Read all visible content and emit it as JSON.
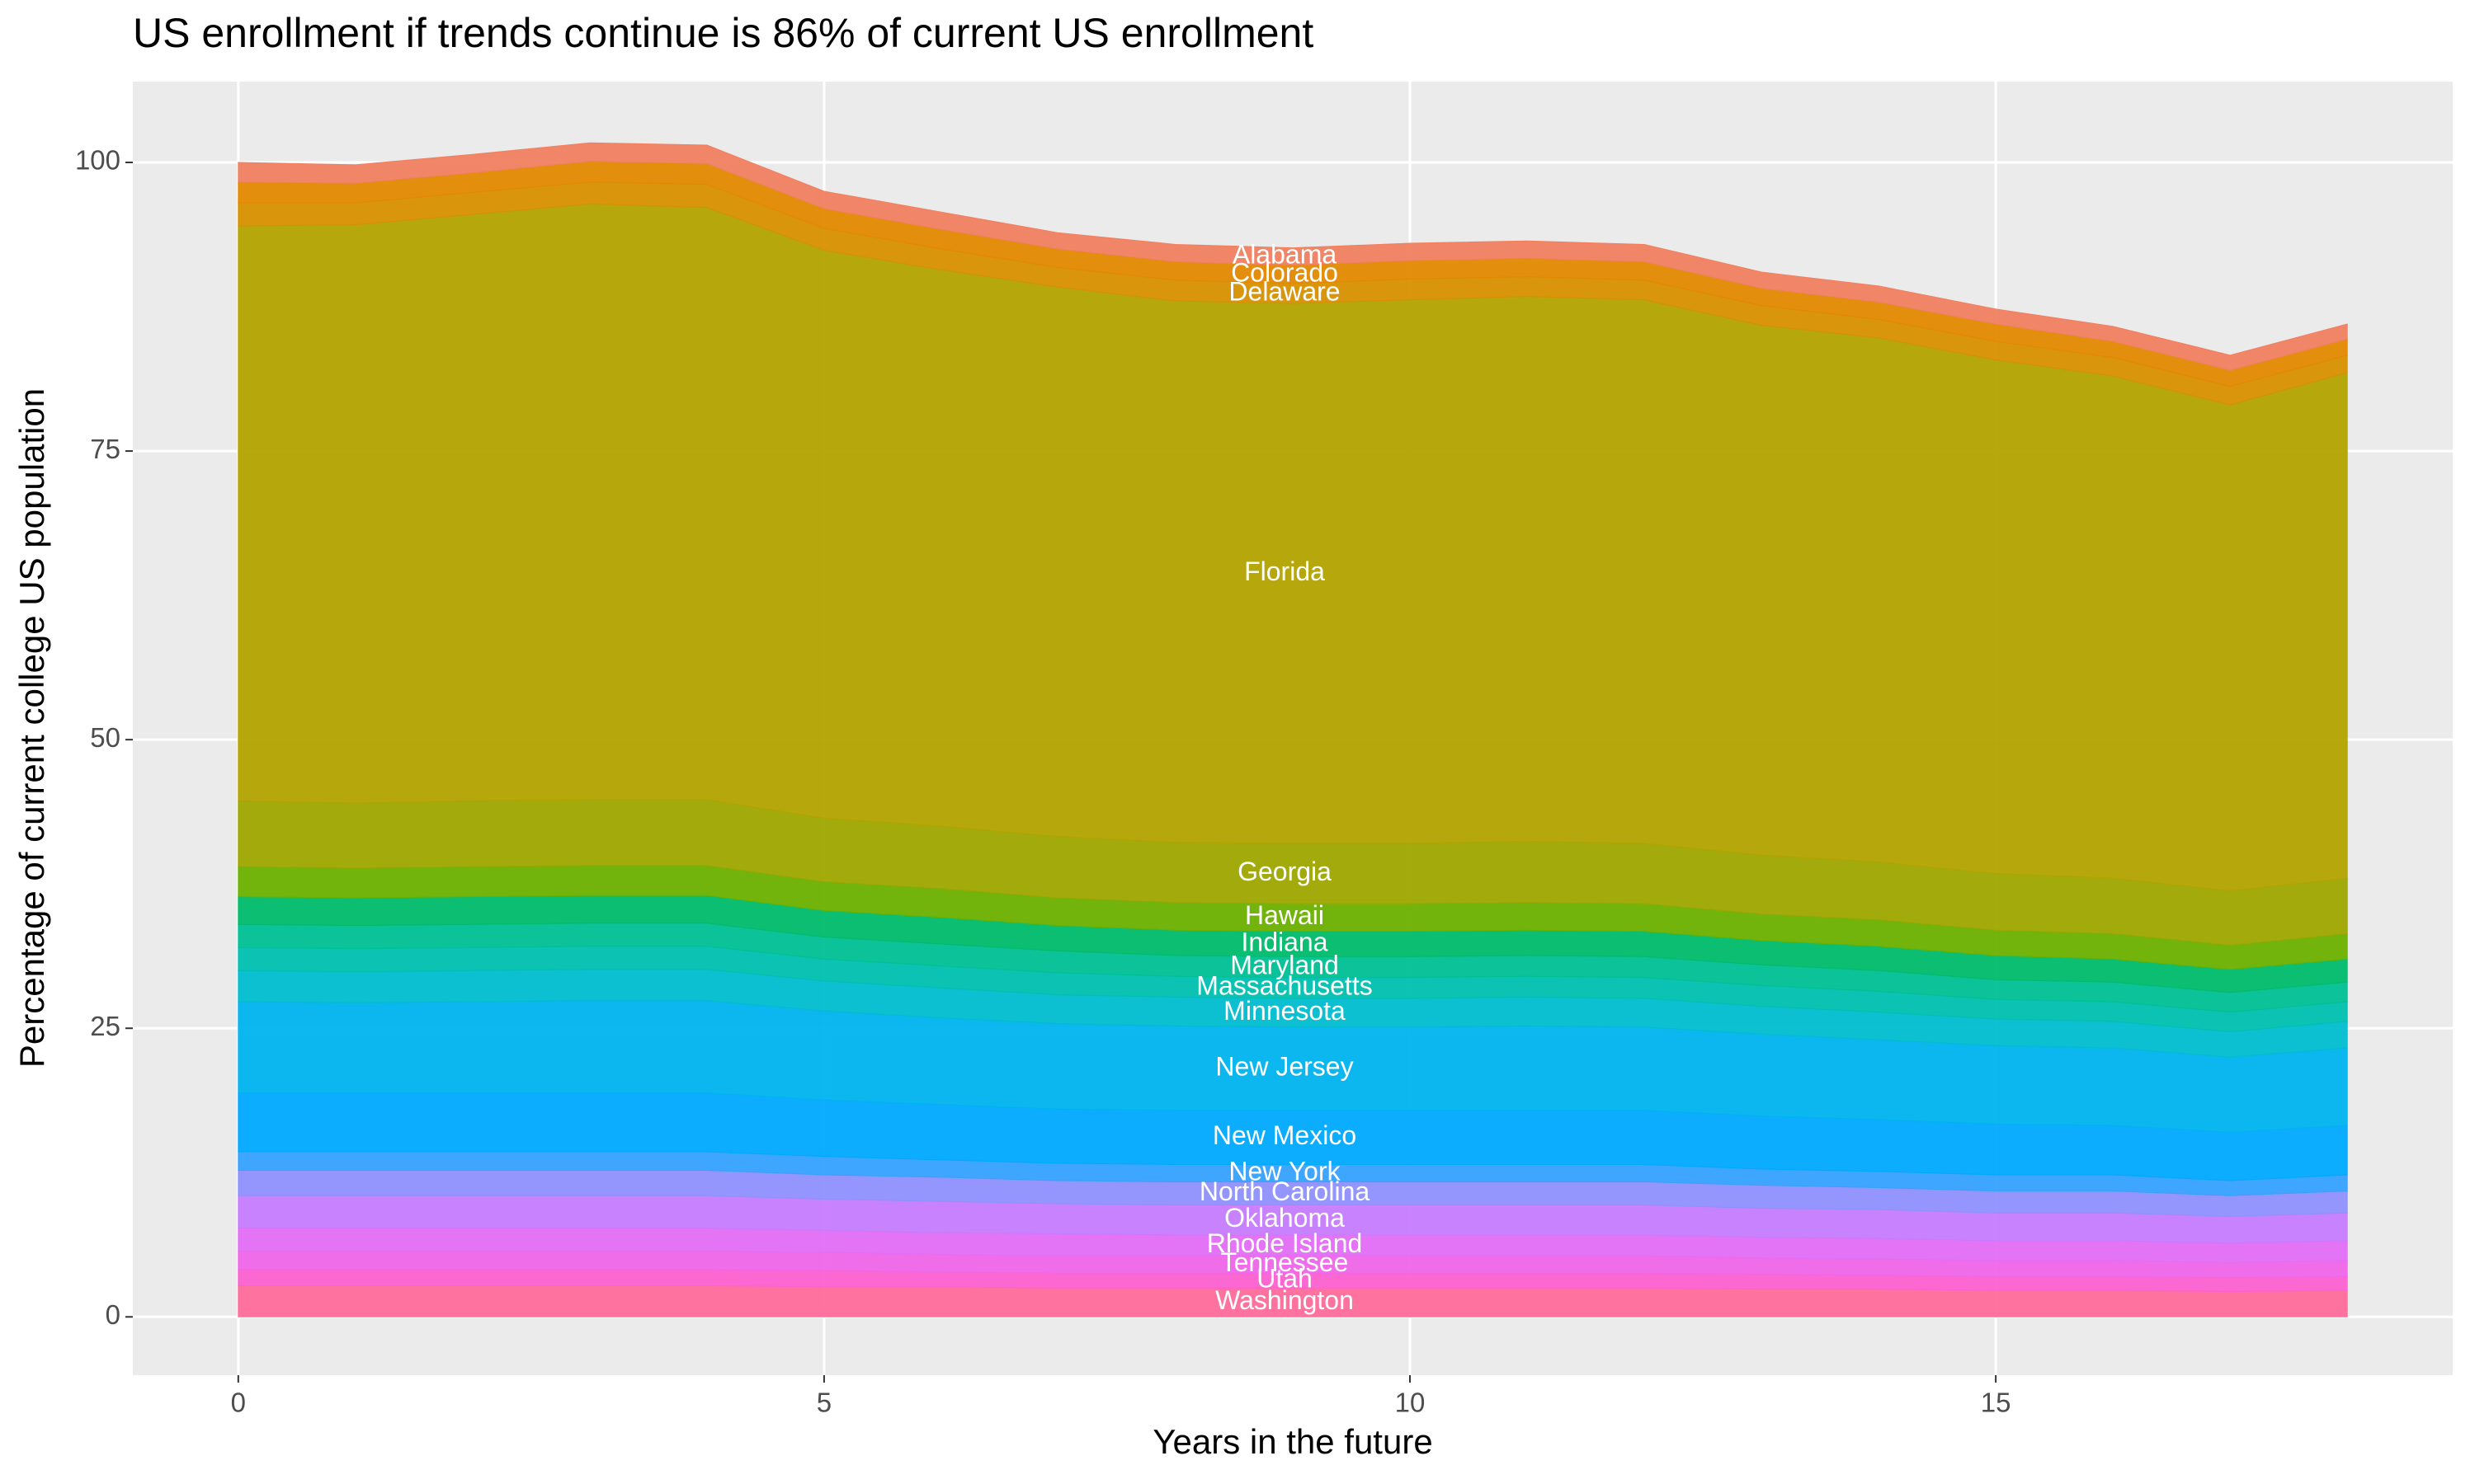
{
  "chart_data": {
    "type": "stacked_area",
    "title": "US enrollment if trends continue is 86% of current US enrollment",
    "x_label": "Years in the future",
    "y_label": "Percentage of current college US population",
    "x": [
      0,
      1,
      2,
      3,
      4,
      5,
      6,
      7,
      8,
      9,
      10,
      11,
      12,
      13,
      14,
      15,
      16,
      17,
      18
    ],
    "xlim": [
      -0.9,
      18.9
    ],
    "xticks": [
      0,
      5,
      10,
      15
    ],
    "ylim": [
      -5.05,
      107
    ],
    "yticks": [
      0,
      25,
      50,
      75,
      100
    ],
    "grid": true,
    "series": [
      {
        "name": "Washington",
        "color": "#ff6c9c",
        "values": [
          2.7,
          2.7,
          2.7,
          2.7,
          2.7,
          2.6,
          2.6,
          2.5,
          2.5,
          2.5,
          2.5,
          2.5,
          2.5,
          2.4,
          2.4,
          2.3,
          2.3,
          2.2,
          2.3
        ]
      },
      {
        "name": "Utah",
        "color": "#fd61d1",
        "values": [
          1.4,
          1.4,
          1.4,
          1.4,
          1.4,
          1.4,
          1.3,
          1.3,
          1.3,
          1.3,
          1.3,
          1.3,
          1.3,
          1.3,
          1.2,
          1.2,
          1.2,
          1.2,
          1.2
        ]
      },
      {
        "name": "Tennessee",
        "color": "#f066ea",
        "values": [
          1.6,
          1.6,
          1.6,
          1.6,
          1.6,
          1.6,
          1.5,
          1.5,
          1.5,
          1.5,
          1.5,
          1.5,
          1.5,
          1.4,
          1.4,
          1.4,
          1.4,
          1.3,
          1.4
        ]
      },
      {
        "name": "Rhode Island",
        "color": "#e36ef6",
        "values": [
          2.0,
          2.0,
          2.0,
          2.0,
          2.0,
          1.9,
          1.9,
          1.9,
          1.8,
          1.8,
          1.8,
          1.8,
          1.8,
          1.8,
          1.8,
          1.7,
          1.7,
          1.7,
          1.7
        ]
      },
      {
        "name": "Oklahoma",
        "color": "#c77cff",
        "values": [
          2.8,
          2.8,
          2.8,
          2.8,
          2.8,
          2.7,
          2.7,
          2.6,
          2.6,
          2.6,
          2.6,
          2.6,
          2.6,
          2.5,
          2.5,
          2.4,
          2.4,
          2.3,
          2.4
        ]
      },
      {
        "name": "North Carolina",
        "color": "#8f91ff",
        "values": [
          2.2,
          2.2,
          2.2,
          2.2,
          2.2,
          2.1,
          2.1,
          2.0,
          2.0,
          2.0,
          2.0,
          2.0,
          2.0,
          2.0,
          1.9,
          1.9,
          1.9,
          1.8,
          1.9
        ]
      },
      {
        "name": "New York",
        "color": "#35a2ff",
        "values": [
          1.6,
          1.6,
          1.6,
          1.6,
          1.6,
          1.6,
          1.5,
          1.5,
          1.5,
          1.5,
          1.5,
          1.5,
          1.5,
          1.4,
          1.4,
          1.4,
          1.4,
          1.3,
          1.4
        ]
      },
      {
        "name": "New Mexico",
        "color": "#00a9ff",
        "values": [
          5.1,
          5.1,
          5.1,
          5.1,
          5.1,
          4.9,
          4.8,
          4.7,
          4.7,
          4.7,
          4.7,
          4.7,
          4.7,
          4.6,
          4.5,
          4.4,
          4.3,
          4.2,
          4.3
        ]
      },
      {
        "name": "New Jersey",
        "color": "#00b4ef",
        "values": [
          7.9,
          7.8,
          7.9,
          8.0,
          8.0,
          7.7,
          7.5,
          7.4,
          7.3,
          7.2,
          7.2,
          7.3,
          7.2,
          7.1,
          6.9,
          6.8,
          6.7,
          6.5,
          6.7
        ]
      },
      {
        "name": "Minnesota",
        "color": "#00bdd0",
        "values": [
          2.7,
          2.7,
          2.7,
          2.7,
          2.7,
          2.6,
          2.6,
          2.5,
          2.5,
          2.5,
          2.5,
          2.5,
          2.5,
          2.4,
          2.4,
          2.3,
          2.3,
          2.2,
          2.3
        ]
      },
      {
        "name": "Massachusetts",
        "color": "#00c0b0",
        "values": [
          2.0,
          2.0,
          2.0,
          2.0,
          2.0,
          1.9,
          1.9,
          1.9,
          1.8,
          1.8,
          1.8,
          1.8,
          1.8,
          1.8,
          1.8,
          1.7,
          1.7,
          1.7,
          1.7
        ]
      },
      {
        "name": "Maryland",
        "color": "#00c094",
        "values": [
          2.0,
          2.0,
          2.0,
          2.0,
          2.0,
          1.9,
          1.9,
          1.9,
          1.8,
          1.8,
          1.8,
          1.8,
          1.8,
          1.8,
          1.8,
          1.7,
          1.7,
          1.7,
          1.7
        ]
      },
      {
        "name": "Indiana",
        "color": "#00bc6c",
        "values": [
          2.4,
          2.4,
          2.4,
          2.4,
          2.4,
          2.3,
          2.3,
          2.2,
          2.2,
          2.2,
          2.2,
          2.2,
          2.2,
          2.1,
          2.1,
          2.1,
          2.0,
          2.0,
          2.0
        ]
      },
      {
        "name": "Hawaii",
        "color": "#6bb100",
        "values": [
          2.6,
          2.6,
          2.6,
          2.6,
          2.6,
          2.5,
          2.5,
          2.4,
          2.4,
          2.4,
          2.4,
          2.4,
          2.4,
          2.3,
          2.3,
          2.2,
          2.2,
          2.1,
          2.2
        ]
      },
      {
        "name": "Georgia",
        "color": "#9ea700",
        "values": [
          5.7,
          5.6,
          5.7,
          5.7,
          5.7,
          5.5,
          5.4,
          5.3,
          5.2,
          5.2,
          5.2,
          5.3,
          5.2,
          5.1,
          5.0,
          4.9,
          4.8,
          4.7,
          4.8
        ]
      },
      {
        "name": "Florida",
        "color": "#b3a300",
        "values": [
          49.8,
          50.1,
          50.8,
          51.6,
          51.3,
          49.2,
          48.2,
          47.6,
          46.9,
          46.8,
          47.1,
          47.2,
          47.1,
          45.9,
          45.4,
          44.5,
          43.5,
          42.1,
          43.8
        ]
      },
      {
        "name": "Delaware",
        "color": "#d89000",
        "values": [
          2.0,
          1.9,
          1.9,
          1.9,
          2.0,
          1.9,
          1.8,
          1.7,
          1.8,
          1.7,
          1.8,
          1.7,
          1.7,
          1.7,
          1.6,
          1.6,
          1.6,
          1.6,
          1.5
        ]
      },
      {
        "name": "Colorado",
        "color": "#e38900",
        "values": [
          1.8,
          1.7,
          1.7,
          1.8,
          1.8,
          1.7,
          1.7,
          1.6,
          1.6,
          1.6,
          1.6,
          1.6,
          1.6,
          1.5,
          1.5,
          1.5,
          1.4,
          1.4,
          1.4
        ]
      },
      {
        "name": "Alabama",
        "color": "#f08060",
        "values": [
          1.7,
          1.6,
          1.6,
          1.6,
          1.6,
          1.5,
          1.5,
          1.4,
          1.5,
          1.5,
          1.5,
          1.5,
          1.5,
          1.4,
          1.4,
          1.3,
          1.3,
          1.3,
          1.3
        ]
      }
    ]
  }
}
